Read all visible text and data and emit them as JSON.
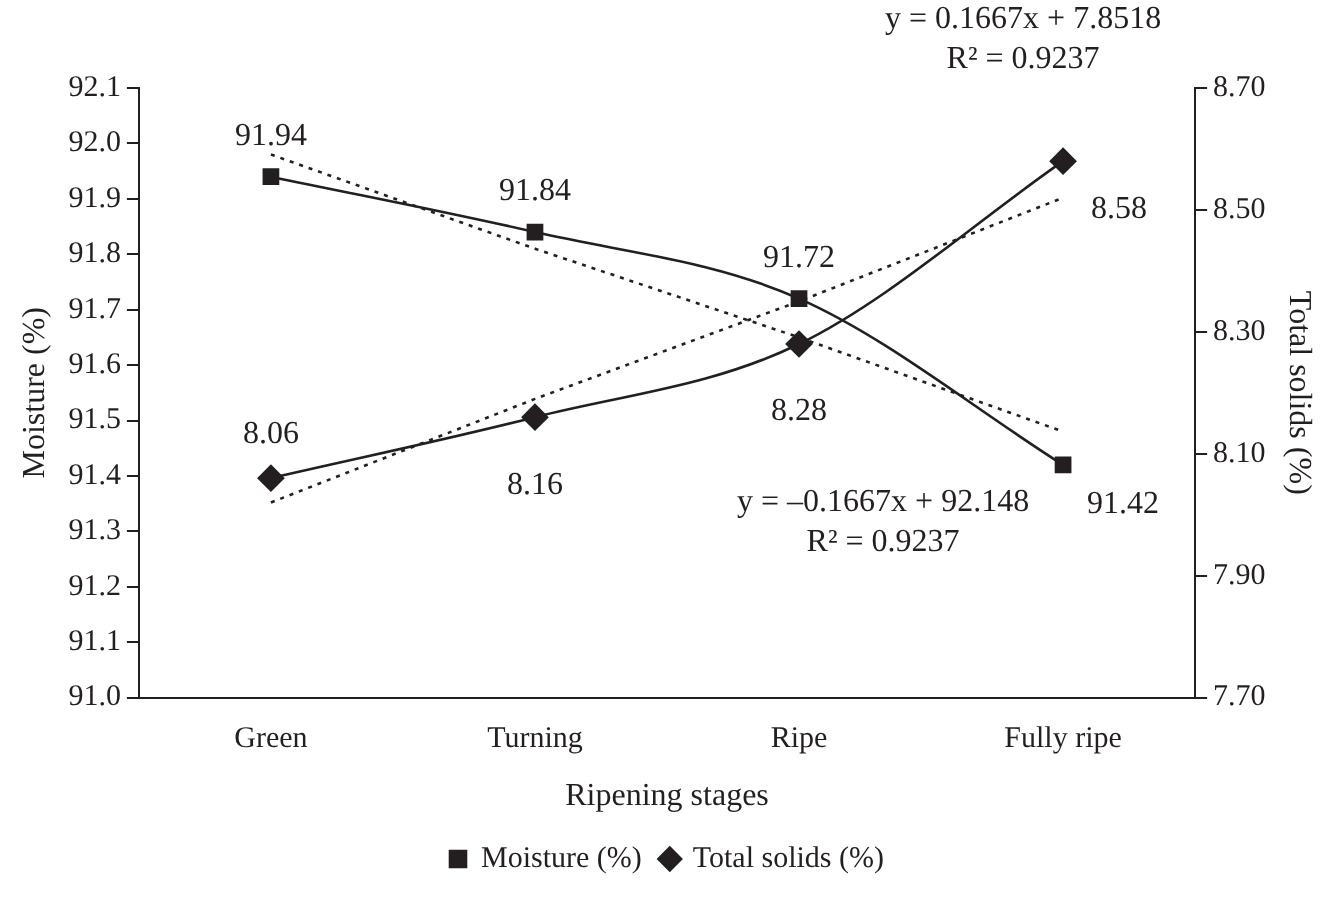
{
  "chart_data": {
    "type": "line",
    "xlabel": "Ripening stages",
    "ylabel": "Moisture (%)",
    "y2label": "Total solids (%)",
    "categories": [
      "Green",
      "Turning",
      "Ripe",
      "Fully ripe"
    ],
    "series": [
      {
        "name": "Moisture (%)",
        "color": "#231f20",
        "values": [
          91.94,
          91.84,
          91.72,
          91.42
        ],
        "marker": "square",
        "value_labels": [
          "91.94",
          "91.84",
          "91.72",
          "91.42"
        ]
      },
      {
        "name": "Total solids (%)",
        "color": "#231f20",
        "values": [
          8.06,
          8.16,
          8.28,
          8.58
        ],
        "marker": "diamond",
        "axis": "y2",
        "value_labels": [
          "8.06",
          "8.16",
          "8.28",
          "8.58"
        ]
      },
      {
        "color": "#231f20",
        "values": [
          91.98,
          91.81,
          91.65,
          91.48
        ],
        "marker": "none",
        "line_style": "dotted"
      },
      {
        "color": "#231f20",
        "values": [
          8.02,
          8.19,
          8.35,
          8.52
        ],
        "marker": "none",
        "line_style": "dotted",
        "axis": "y2"
      }
    ],
    "ylim": [
      91.0,
      92.1
    ],
    "yticks": [
      {
        "value": 91.0,
        "label": "91.0"
      },
      91.1,
      91.2,
      91.3,
      91.4,
      91.5,
      91.6,
      91.7,
      91.8,
      91.9,
      {
        "value": 92.0,
        "label": "92.0"
      },
      92.1
    ],
    "y2lim": [
      7.7,
      8.7
    ],
    "y2ticks": [
      {
        "value": 7.7,
        "label": "7.70"
      },
      {
        "value": 7.9,
        "label": "7.90"
      },
      {
        "value": 8.1,
        "label": "8.10"
      },
      {
        "value": 8.3,
        "label": "8.30"
      },
      {
        "value": 8.5,
        "label": "8.50"
      },
      {
        "value": 8.7,
        "label": "8.70"
      }
    ],
    "annotations": [
      "y = 0.1667x + 7.8518",
      "R² = 0.9237",
      "y = –0.1667x + 92.148",
      "R² = 0.9237"
    ],
    "grid": false,
    "legend": "bottom"
  }
}
